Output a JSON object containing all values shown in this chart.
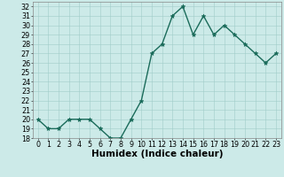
{
  "x": [
    0,
    1,
    2,
    3,
    4,
    5,
    6,
    7,
    8,
    9,
    10,
    11,
    12,
    13,
    14,
    15,
    16,
    17,
    18,
    19,
    20,
    21,
    22,
    23
  ],
  "y": [
    20,
    19,
    19,
    20,
    20,
    20,
    19,
    18,
    18,
    20,
    22,
    27,
    28,
    31,
    32,
    29,
    31,
    29,
    30,
    29,
    28,
    27,
    26,
    27
  ],
  "xlabel": "Humidex (Indice chaleur)",
  "ylim": [
    18,
    32.5
  ],
  "xlim": [
    -0.5,
    23.5
  ],
  "yticks": [
    18,
    19,
    20,
    21,
    22,
    23,
    24,
    25,
    26,
    27,
    28,
    29,
    30,
    31,
    32
  ],
  "xticks": [
    0,
    1,
    2,
    3,
    4,
    5,
    6,
    7,
    8,
    9,
    10,
    11,
    12,
    13,
    14,
    15,
    16,
    17,
    18,
    19,
    20,
    21,
    22,
    23
  ],
  "line_color": "#1a6b5a",
  "marker": "*",
  "marker_color": "#1a6b5a",
  "bg_color": "#cceae8",
  "grid_color": "#a0ccc9",
  "tick_label_fontsize": 5.8,
  "xlabel_fontsize": 7.5,
  "linewidth": 1.0,
  "marker_size": 3.5
}
